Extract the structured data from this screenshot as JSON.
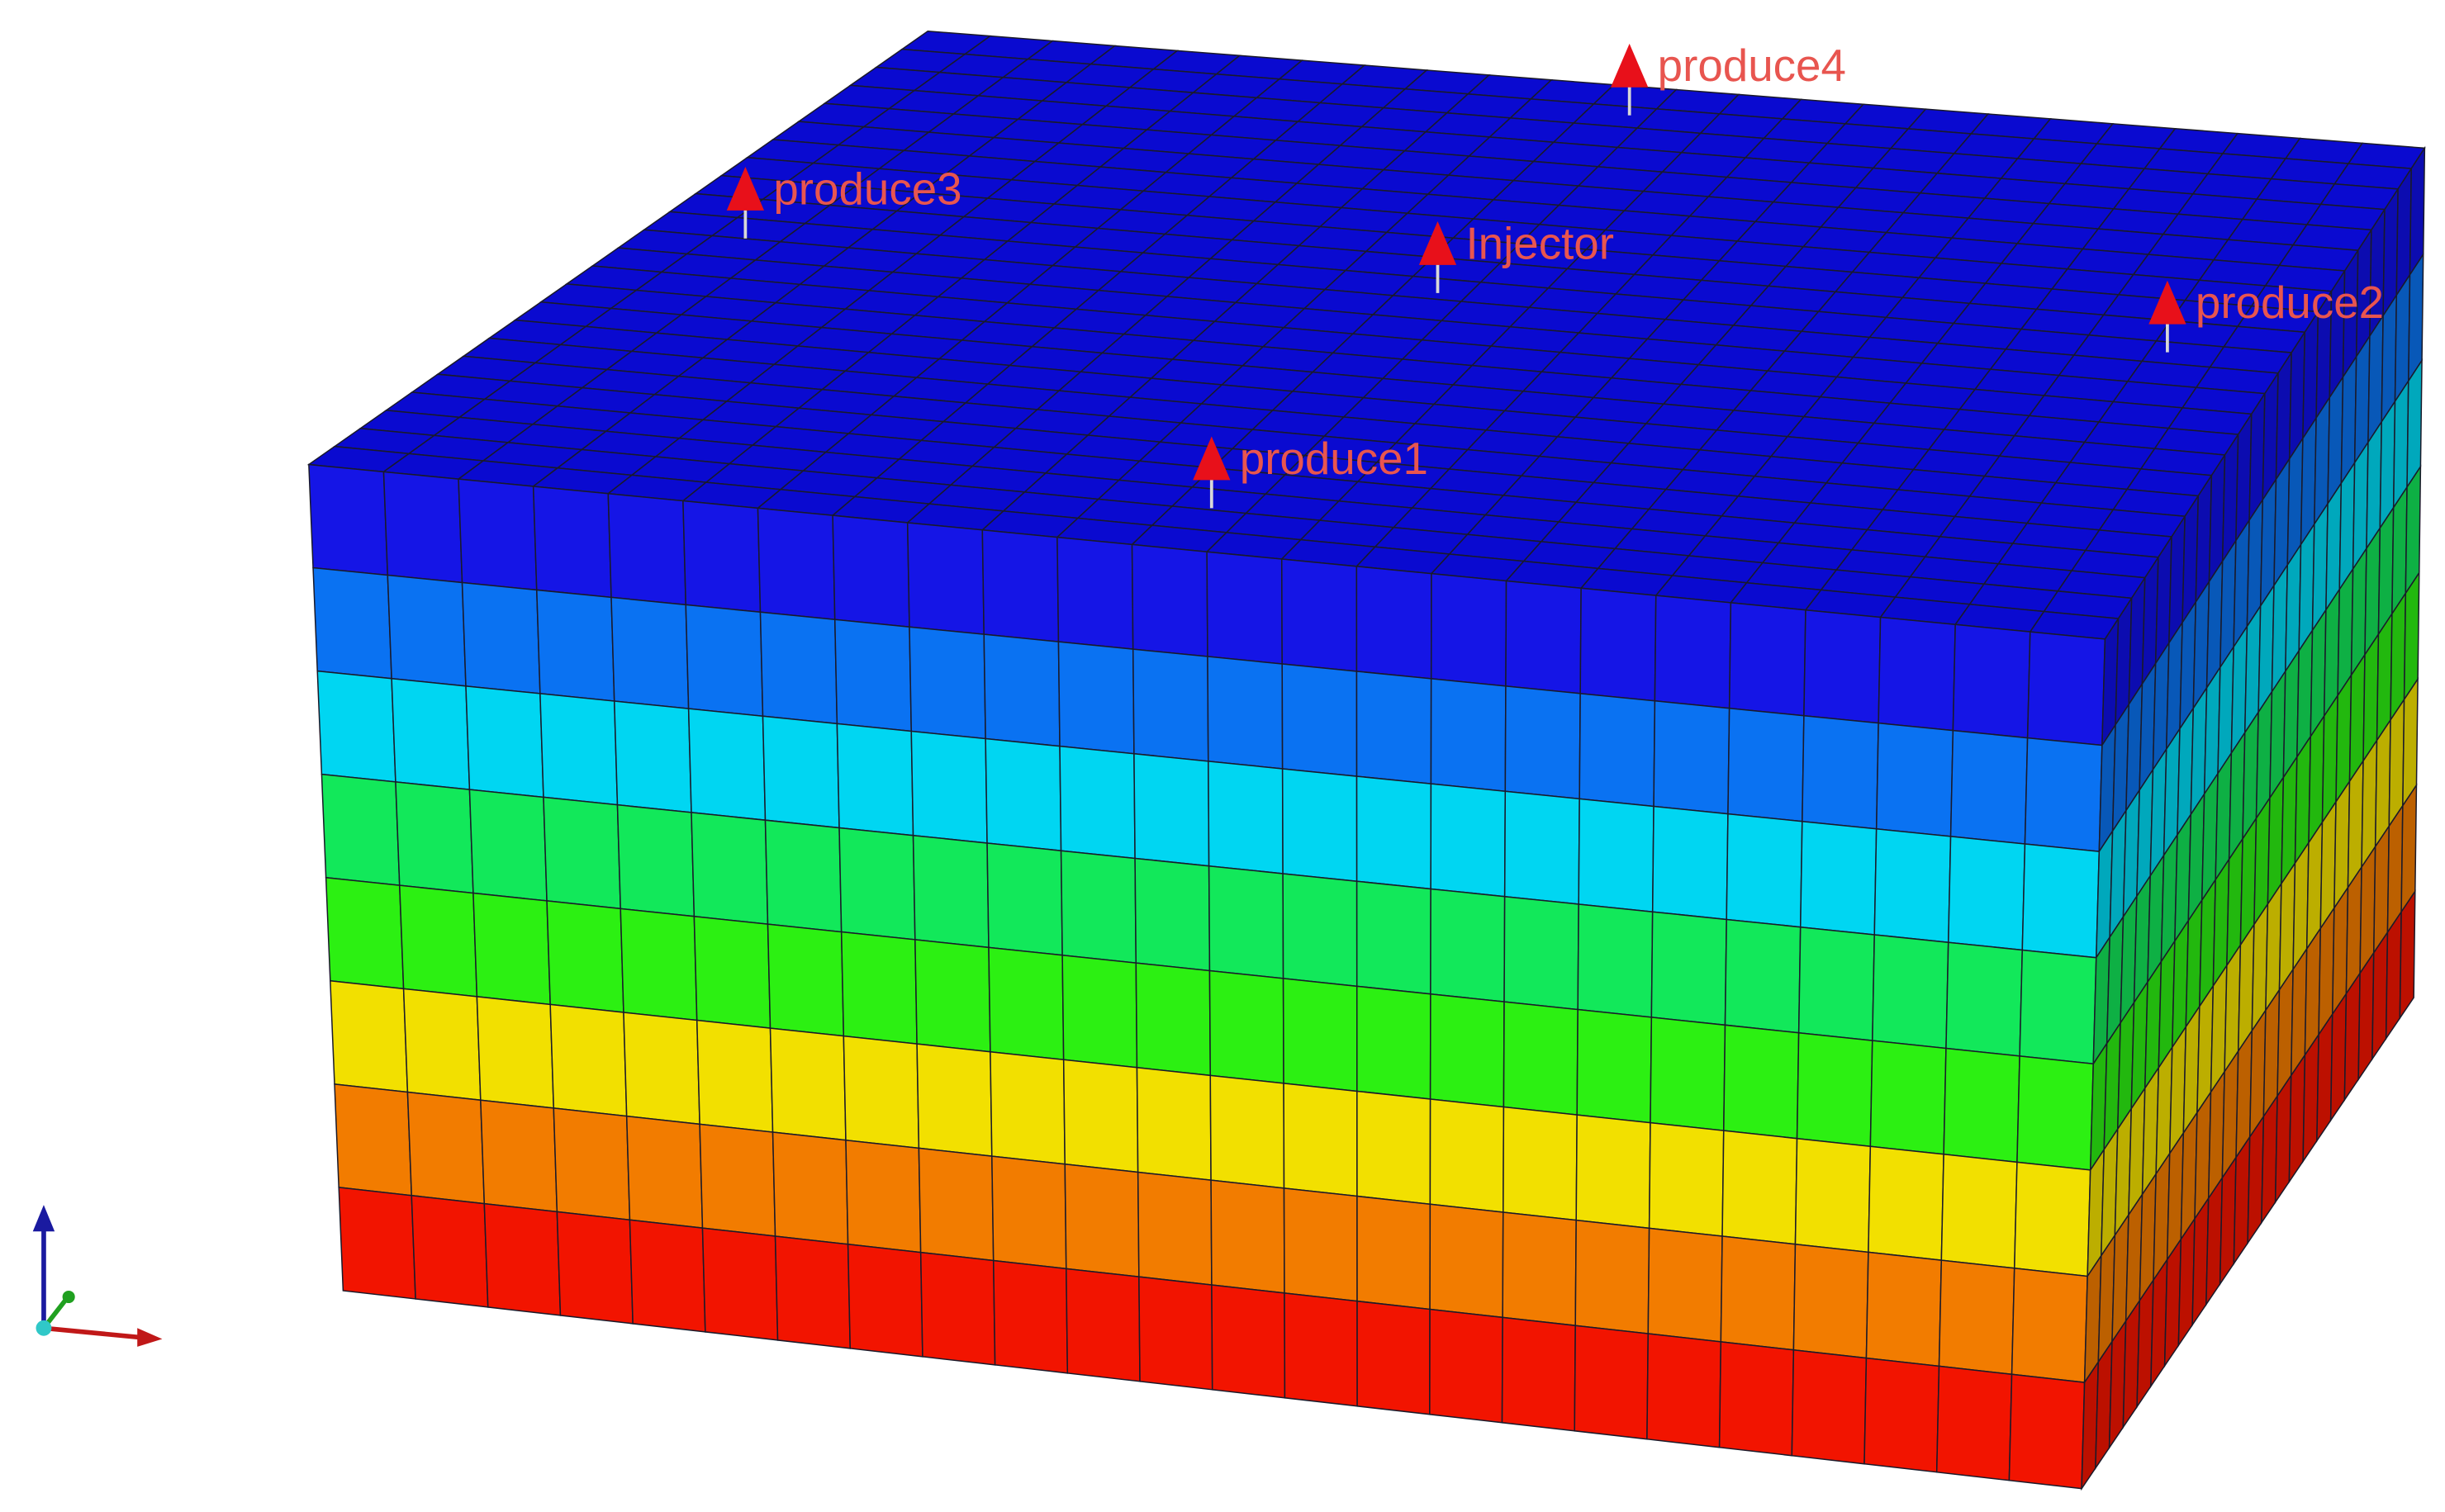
{
  "wells": [
    {
      "label": "produce4"
    },
    {
      "label": "produce3"
    },
    {
      "label": "Injector"
    },
    {
      "label": "produce2"
    },
    {
      "label": "produce1"
    }
  ]
}
